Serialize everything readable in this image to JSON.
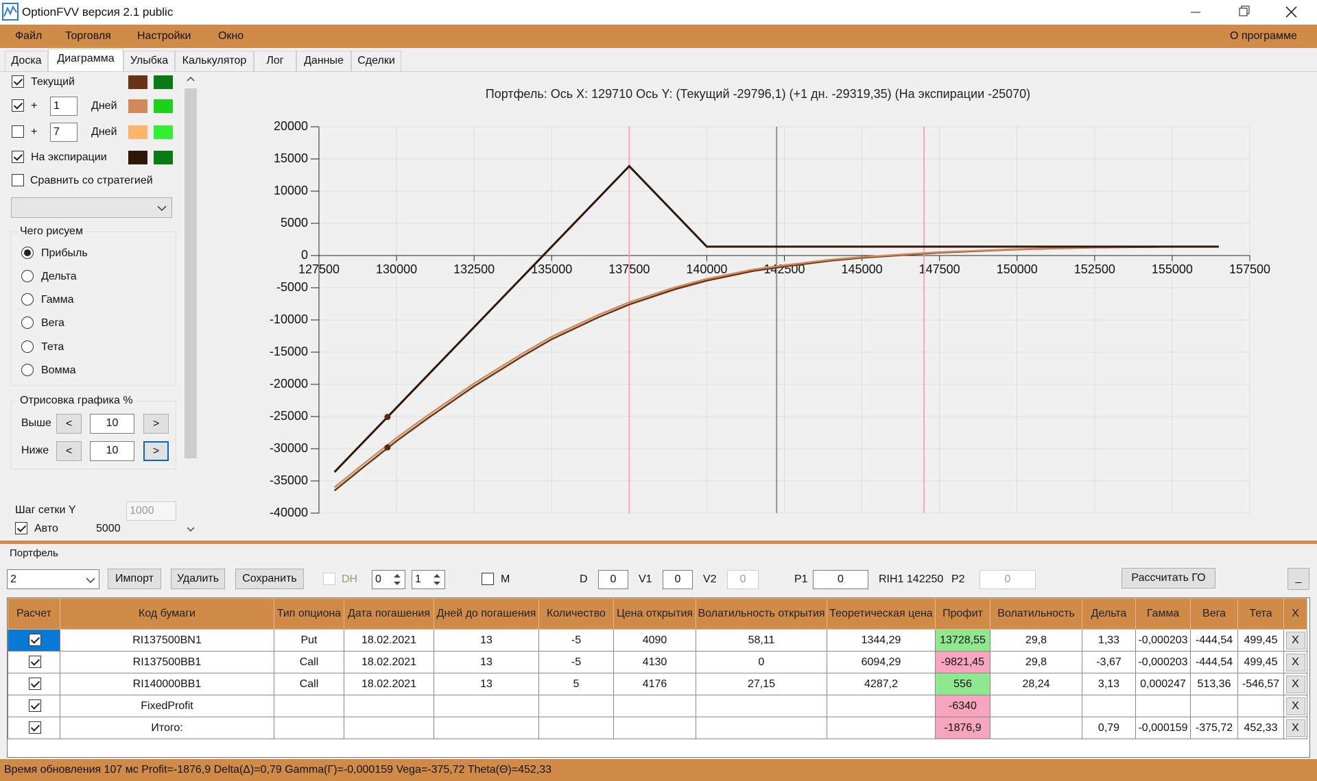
{
  "window": {
    "title": "OptionFVV версия 2.1 public"
  },
  "menu": {
    "items": [
      "Файл",
      "Торговля",
      "Настройки",
      "Окно"
    ],
    "about": "О программе"
  },
  "tabs": [
    "Доска",
    "Диаграмма",
    "Улыбка",
    "Калькулятор",
    "Лог",
    "Данные",
    "Сделки"
  ],
  "left_panel": {
    "plus": "+",
    "days_1": "1",
    "days_7": "7",
    "days_label": "Дней",
    "compare": "Сравнить со стратегией",
    "draw_group": {
      "title": "Чего рисуем",
      "options": [
        "Прибыль",
        "Дельта",
        "Гамма",
        "Вега",
        "Тета",
        "Вомма"
      ]
    },
    "range_group": {
      "title": "Отрисовка графика %",
      "above": "Выше",
      "below": "Ниже",
      "above_value": "10",
      "below_value": "10",
      "prev": "<",
      "next": ">"
    },
    "grid_step_label": "Шаг сетки Y",
    "grid_step_value": "1000",
    "auto_label": "Авто",
    "auto_value": "5000"
  },
  "chart_data": {
    "type": "line",
    "title": "Портфель:  Ось X:  129710  Ось Y:  (Текущий -29796,1)  (+1 дн. -29319,35)  (На экспирации -25070)",
    "xlim": [
      127500,
      157500
    ],
    "xticks": [
      127500,
      130000,
      132500,
      135000,
      137500,
      140000,
      142500,
      145000,
      147500,
      150000,
      152500,
      155000,
      157500
    ],
    "ylim": [
      -40000,
      20000
    ],
    "yticks": [
      -40000,
      -35000,
      -30000,
      -25000,
      -20000,
      -15000,
      -10000,
      -5000,
      0,
      5000,
      10000,
      15000,
      20000
    ],
    "grid": true,
    "series": [
      {
        "name": "Текущий",
        "color": "#6a3414",
        "x": [
          128000,
          129000,
          130000,
          131000,
          132500,
          134000,
          135000,
          136500,
          137500,
          139000,
          140000,
          141500,
          142500,
          144000,
          145000,
          147500,
          150000,
          152500,
          155000,
          156500
        ],
        "values": [
          -36500,
          -32600,
          -28800,
          -25300,
          -20300,
          -15800,
          -13000,
          -9600,
          -7600,
          -5200,
          -3900,
          -2400,
          -1700,
          -800,
          -350,
          450,
          950,
          1250,
          1370,
          1380
        ]
      },
      {
        "color": "#d08a5a",
        "x": [
          128000,
          129000,
          130000,
          131000,
          132500,
          134000,
          135000,
          136500,
          137500,
          139000,
          140000,
          141500,
          142500,
          144000,
          145000,
          147500,
          150000,
          152500,
          155000,
          156500
        ],
        "values": [
          -36000,
          -32110,
          -28325,
          -24840,
          -19860,
          -15380,
          -12600,
          -9230,
          -7250,
          -4900,
          -3630,
          -2170,
          -1500,
          -640,
          -220,
          530,
          990,
          1270,
          1375,
          1380
        ]
      },
      {
        "name": "На экспирации",
        "color": "#2e1709",
        "x": [
          128000,
          137500,
          140000,
          156500
        ],
        "values": [
          -33620,
          13880,
          1380,
          1380
        ]
      }
    ],
    "cursor": {
      "x": 129710,
      "values": [
        -25070,
        -29796.1
      ],
      "color": "#5a2a10"
    },
    "vlines": [
      {
        "x": 137500,
        "color": "#f4a8b0"
      },
      {
        "x": 147000,
        "color": "#f4a8b0"
      },
      {
        "x": 142250,
        "color": "#8f9393"
      }
    ]
  },
  "portfolio": {
    "title": "Портфель",
    "selected": "2",
    "import": "Импорт",
    "delete": "Удалить",
    "save": "Сохранить",
    "dh": "DH",
    "spin1": "0",
    "spin2": "1",
    "m": "M",
    "d_label": "D",
    "d": "0",
    "v1_label": "V1",
    "v1": "0",
    "v2_label": "V2",
    "v2": "0",
    "p1_label": "P1",
    "p1": "0",
    "instrument": "RIH1 142250",
    "p2_label": "P2",
    "p2": "0",
    "calc": "Рассчитать ГО",
    "minimize": "_",
    "table": {
      "headers": [
        "Расчет",
        "Код бумаги",
        "Тип опциона",
        "Дата погашения",
        "Дней до погашения",
        "Количество",
        "Цена открытия",
        "Волатильность открытия",
        "Теоретическая цена",
        "Профит",
        "Волатильность",
        "Дельта",
        "Гамма",
        "Вега",
        "Тета",
        "X"
      ],
      "remove": "X",
      "rows": [
        [
          "RI137500BN1",
          "Put",
          "18.02.2021",
          "13",
          "-5",
          "4090",
          "58,11",
          "1344,29",
          "13728,55",
          "29,8",
          "1,33",
          "-0,000203",
          "-444,54",
          "499,45"
        ],
        [
          "RI137500BB1",
          "Call",
          "18.02.2021",
          "13",
          "-5",
          "4130",
          "0",
          "6094,29",
          "-9821,45",
          "29,8",
          "-3,67",
          "-0,000203",
          "-444,54",
          "499,45"
        ],
        [
          "RI140000BB1",
          "Call",
          "18.02.2021",
          "13",
          "5",
          "4176",
          "27,15",
          "4287,2",
          "556",
          "28,24",
          "3,13",
          "0,000247",
          "513,36",
          "-546,57"
        ],
        [
          "FixedProfit",
          null,
          null,
          null,
          null,
          null,
          null,
          null,
          "-6340",
          null,
          null,
          null,
          null,
          null
        ],
        [
          "Итого:",
          null,
          null,
          null,
          null,
          null,
          null,
          null,
          "-1876,9",
          null,
          "0,79",
          "-0,000159",
          "-375,72",
          "452,33"
        ]
      ]
    }
  },
  "status": "Время обновления 107 мс  Profit=-1876,9 Delta(Δ)=0,79 Gamma(Γ)=-0,000159 Vega=-375,72 Theta(Θ)=452,33"
}
